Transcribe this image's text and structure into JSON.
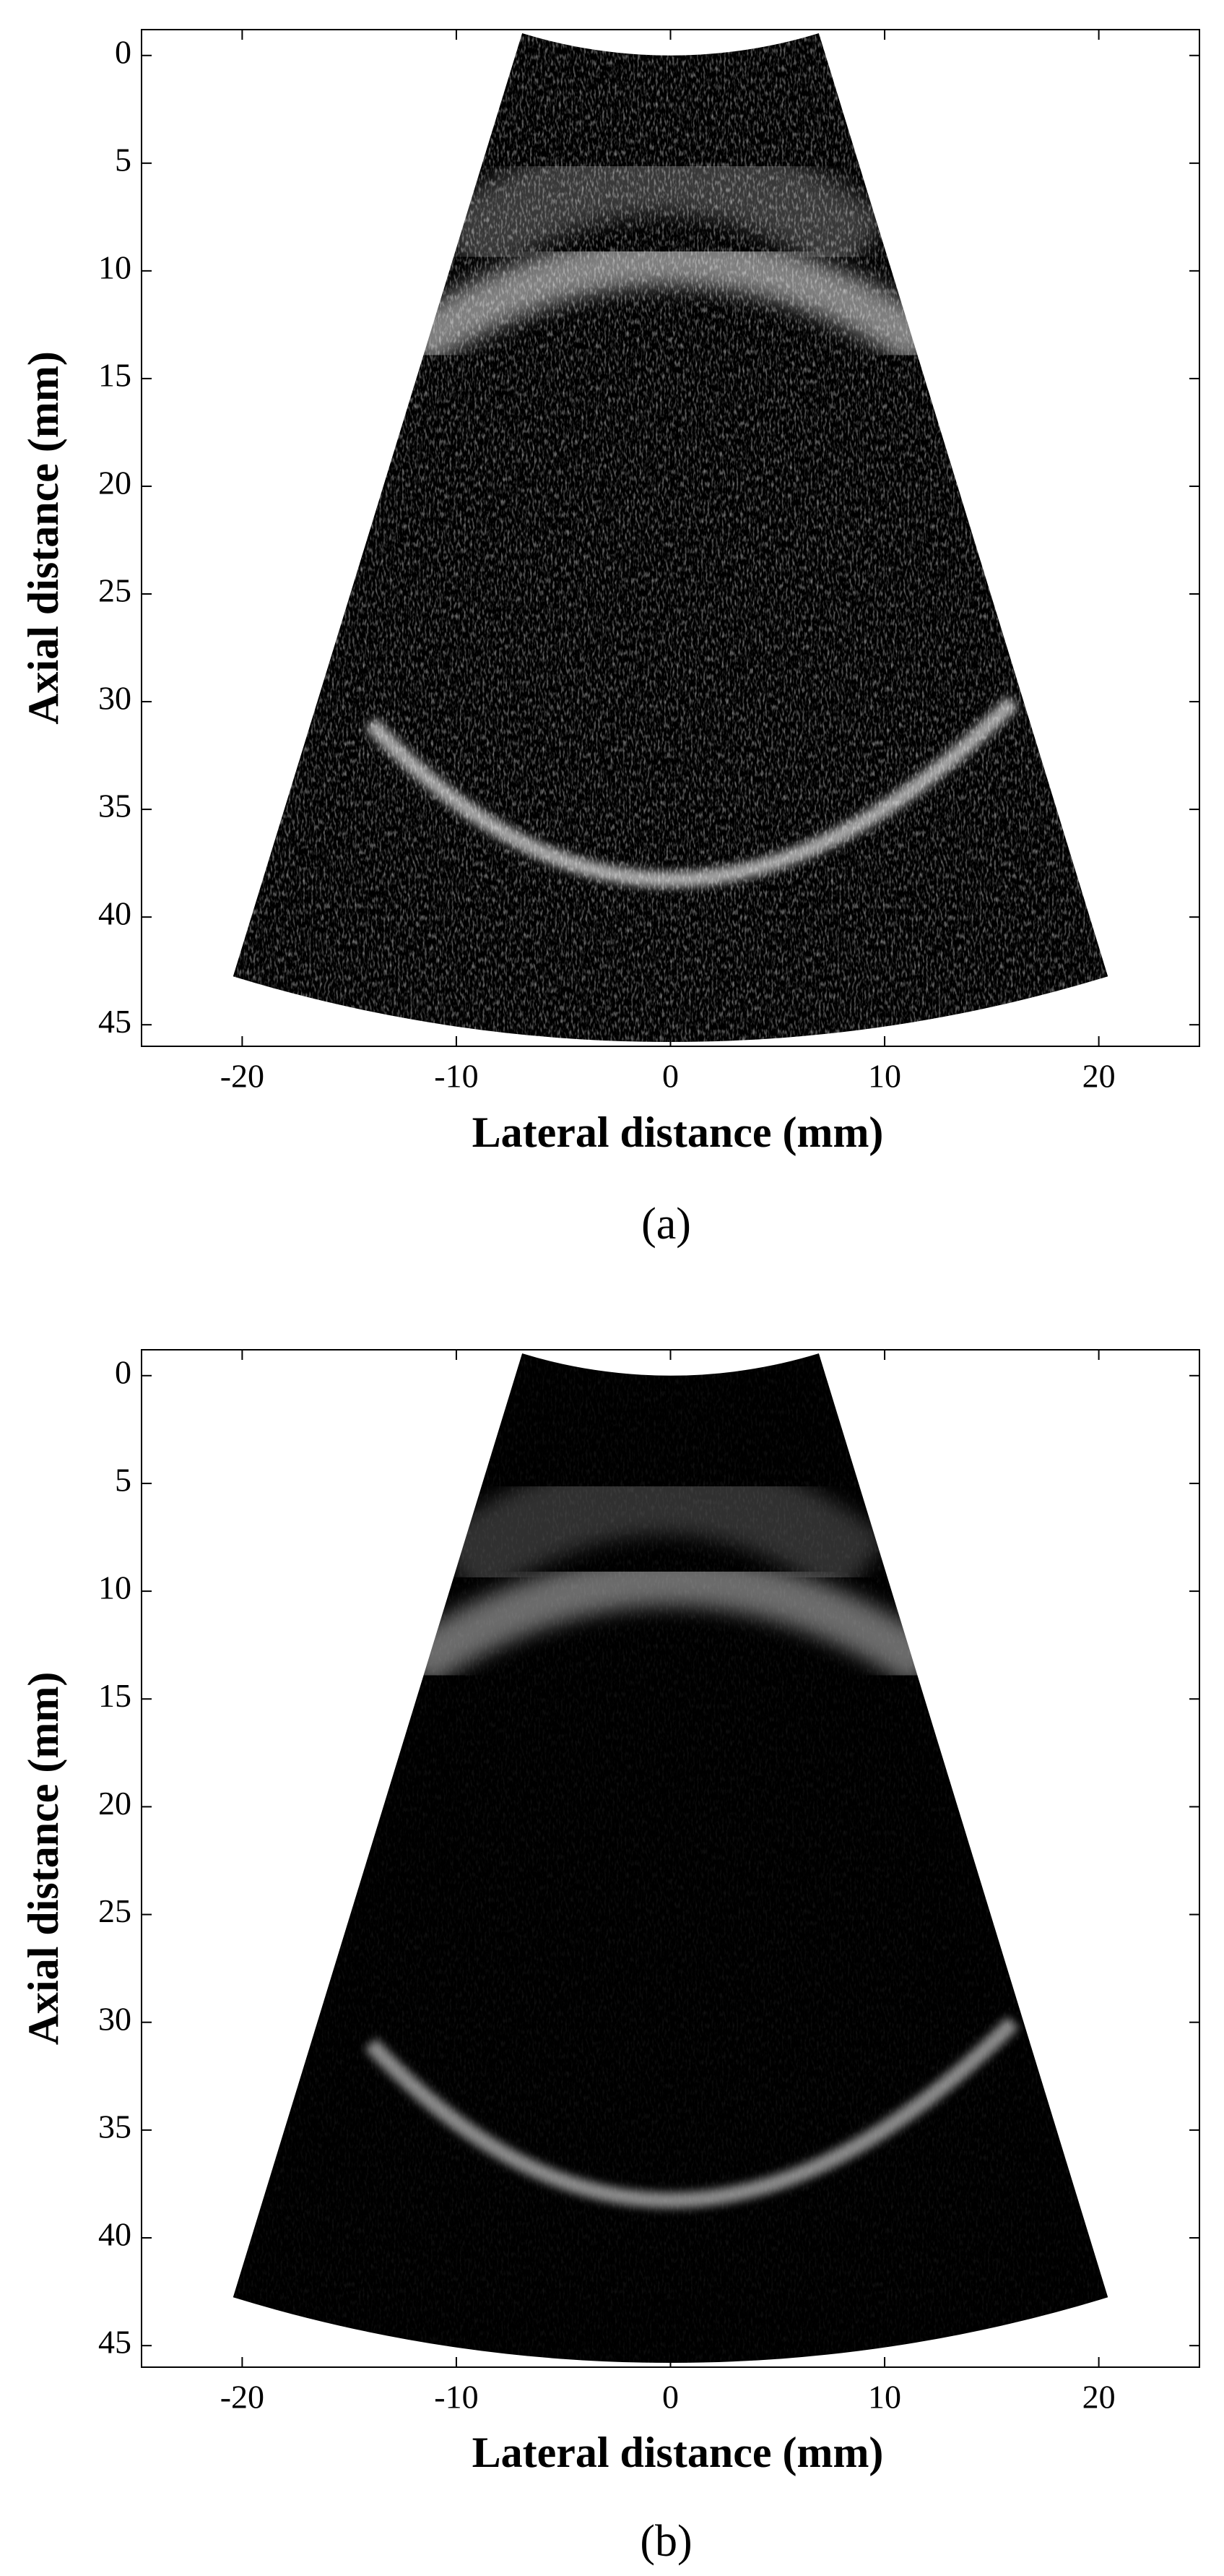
{
  "chart_data": [
    {
      "type": "image",
      "panel_label": "(a)",
      "x_label": "Lateral distance (mm)",
      "y_label": "Axial distance (mm)",
      "xlim": [
        -24.7,
        24.7
      ],
      "ylim": [
        46,
        -1.2
      ],
      "xticks": [
        -20,
        -10,
        0,
        10,
        20
      ],
      "yticks": [
        0,
        5,
        10,
        15,
        20,
        25,
        30,
        35,
        40,
        45
      ]
    },
    {
      "type": "image",
      "panel_label": "(b)",
      "x_label": "Lateral distance (mm)",
      "y_label": "Axial distance (mm)",
      "xlim": [
        -24.7,
        24.7
      ],
      "ylim": [
        46,
        -1.2
      ],
      "xticks": [
        -20,
        -10,
        0,
        10,
        20
      ],
      "yticks": [
        0,
        5,
        10,
        15,
        20,
        25,
        30,
        35,
        40,
        45
      ]
    }
  ]
}
